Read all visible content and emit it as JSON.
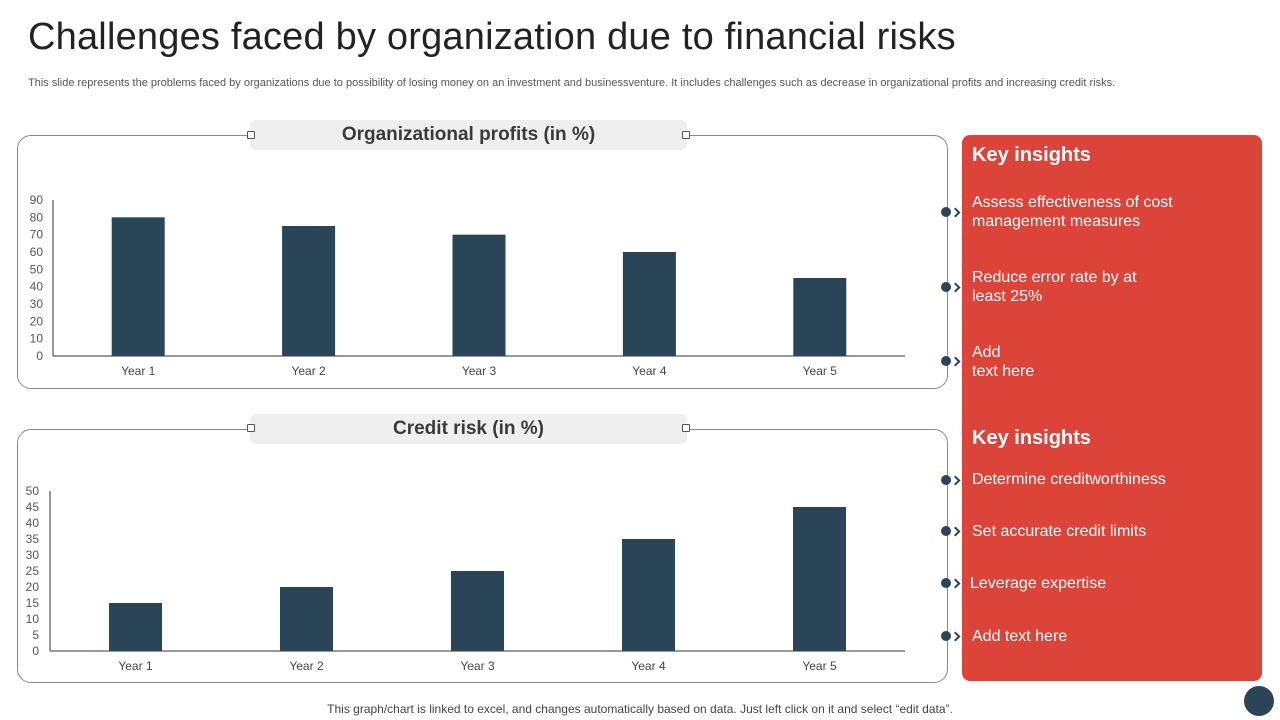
{
  "header": {
    "title": "Challenges faced by organization due to financial risks",
    "subtitle": "This slide represents the problems faced by organizations due to possibility of losing money on an investment and businessventure. It includes challenges such as decrease in organizational profits and increasing credit risks."
  },
  "chart_data": [
    {
      "type": "bar",
      "title": "Organizational profits (in %)",
      "categories": [
        "Year 1",
        "Year 2",
        "Year 3",
        "Year 4",
        "Year 5"
      ],
      "values": [
        80,
        75,
        70,
        60,
        45
      ],
      "yticks": [
        0,
        10,
        20,
        30,
        40,
        50,
        60,
        70,
        80,
        90
      ],
      "ylim": [
        0,
        90
      ],
      "xlabel": "",
      "ylabel": "",
      "grid": false,
      "bar_color": "#2a4558"
    },
    {
      "type": "bar",
      "title": "Credit risk (in %)",
      "categories": [
        "Year 1",
        "Year 2",
        "Year 3",
        "Year 4",
        "Year 5"
      ],
      "values": [
        15,
        20,
        25,
        35,
        45
      ],
      "yticks": [
        0,
        5,
        10,
        15,
        20,
        25,
        30,
        35,
        40,
        45,
        50
      ],
      "ylim": [
        0,
        50
      ],
      "xlabel": "",
      "ylabel": "",
      "grid": false,
      "bar_color": "#2a4558"
    }
  ],
  "insights": {
    "panel_color": "#dc4339",
    "group1": {
      "heading": "Key insights",
      "items": [
        {
          "line1": "Assess effectiveness of cost",
          "line2": "management measures"
        },
        {
          "line1": "Reduce error rate by at",
          "line2": "least 25%"
        },
        {
          "line1": "Add",
          "line2": "text here"
        }
      ]
    },
    "group2": {
      "heading": "Key insights",
      "items": [
        "Determine creditworthiness",
        "Set accurate credit limits",
        "Leverage expertise",
        "Add text here"
      ]
    }
  },
  "footer": {
    "note": "This graph/chart is linked to excel, and changes automatically based on data. Just left click on it and select “edit data”."
  }
}
